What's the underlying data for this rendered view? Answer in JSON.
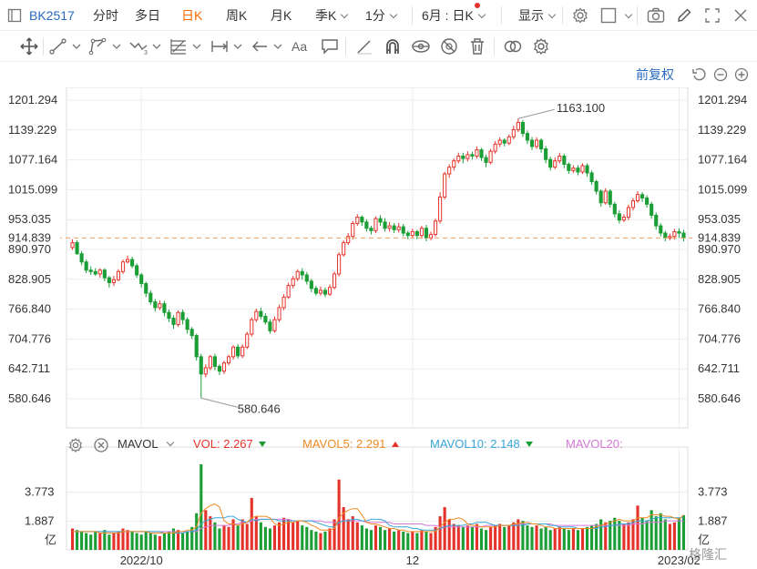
{
  "toolbar": {
    "symbol": "BK2517",
    "tabs": [
      {
        "label": "分时",
        "active": false,
        "dropdown": false
      },
      {
        "label": "多日",
        "active": false,
        "dropdown": false
      },
      {
        "label": "日K",
        "active": true,
        "dropdown": false
      },
      {
        "label": "周K",
        "active": false,
        "dropdown": false
      },
      {
        "label": "月K",
        "active": false,
        "dropdown": false
      },
      {
        "label": "季K",
        "active": false,
        "dropdown": true
      },
      {
        "label": "1分",
        "active": false,
        "dropdown": true
      }
    ],
    "range_label": "6月 : 日K",
    "display_label": "显示"
  },
  "adjust": {
    "label": "前复权"
  },
  "indicator": {
    "name": "MAVOL",
    "vol_label": "VOL: 2.267",
    "ma5_label": "MAVOL5: 2.291",
    "ma10_label": "MAVOL10: 2.148",
    "ma20_label": "MAVOL20:"
  },
  "colors": {
    "up": "#e5332b",
    "down": "#1a9e35",
    "ma5": "#f08a24",
    "ma10": "#38a7d9",
    "ma20": "#d678d9",
    "price_line": "#f0a060",
    "grid": "#ececec"
  },
  "watermark": "格隆汇",
  "chart_data": {
    "type": "candlestick",
    "price_axis": {
      "ticks": [
        "1201.294",
        "1139.229",
        "1077.164",
        "1015.099",
        "953.035",
        "890.970",
        "828.905",
        "766.840",
        "704.776",
        "642.711",
        "580.646"
      ],
      "min": 580.646,
      "max": 1201.294
    },
    "current_price": "914.839",
    "annotations": [
      {
        "label": "1163.100",
        "value": 1163.1
      },
      {
        "label": "580.646",
        "value": 580.646
      }
    ],
    "volume_axis": {
      "ticks": [
        "3.773",
        "1.887"
      ],
      "unit": "亿"
    },
    "x_labels": [
      "2022/10",
      "12",
      "2023/02"
    ],
    "candles": [
      [
        895,
        905,
        890,
        912
      ],
      [
        905,
        882,
        880,
        910
      ],
      [
        882,
        865,
        858,
        888
      ],
      [
        865,
        848,
        842,
        870
      ],
      [
        848,
        845,
        838,
        856
      ],
      [
        845,
        840,
        836,
        852
      ],
      [
        840,
        848,
        832,
        852
      ],
      [
        848,
        832,
        825,
        852
      ],
      [
        832,
        822,
        812,
        836
      ],
      [
        822,
        828,
        815,
        836
      ],
      [
        828,
        845,
        825,
        850
      ],
      [
        845,
        865,
        840,
        870
      ],
      [
        865,
        870,
        862,
        878
      ],
      [
        870,
        857,
        852,
        876
      ],
      [
        857,
        838,
        832,
        862
      ],
      [
        838,
        820,
        812,
        842
      ],
      [
        820,
        800,
        792,
        824
      ],
      [
        800,
        782,
        776,
        806
      ],
      [
        782,
        770,
        762,
        788
      ],
      [
        770,
        778,
        765,
        785
      ],
      [
        778,
        760,
        752,
        784
      ],
      [
        760,
        748,
        740,
        766
      ],
      [
        748,
        735,
        726,
        754
      ],
      [
        735,
        760,
        730,
        764
      ],
      [
        760,
        745,
        735,
        766
      ],
      [
        745,
        725,
        716,
        750
      ],
      [
        725,
        712,
        705,
        730
      ],
      [
        712,
        668,
        660,
        716
      ],
      [
        668,
        632,
        582,
        674
      ],
      [
        632,
        645,
        625,
        652
      ],
      [
        645,
        668,
        640,
        672
      ],
      [
        668,
        648,
        640,
        674
      ],
      [
        648,
        638,
        630,
        652
      ],
      [
        638,
        655,
        632,
        660
      ],
      [
        655,
        668,
        650,
        672
      ],
      [
        668,
        688,
        662,
        692
      ],
      [
        688,
        670,
        664,
        694
      ],
      [
        670,
        688,
        665,
        694
      ],
      [
        688,
        715,
        684,
        720
      ],
      [
        715,
        745,
        710,
        750
      ],
      [
        745,
        762,
        740,
        768
      ],
      [
        762,
        752,
        746,
        770
      ],
      [
        752,
        740,
        735,
        758
      ],
      [
        740,
        722,
        716,
        746
      ],
      [
        722,
        745,
        718,
        752
      ],
      [
        745,
        770,
        740,
        776
      ],
      [
        770,
        792,
        765,
        798
      ],
      [
        792,
        816,
        788,
        822
      ],
      [
        816,
        830,
        810,
        836
      ],
      [
        830,
        845,
        825,
        850
      ],
      [
        845,
        838,
        828,
        852
      ],
      [
        838,
        825,
        818,
        844
      ],
      [
        825,
        810,
        802,
        830
      ],
      [
        810,
        800,
        795,
        815
      ],
      [
        800,
        806,
        795,
        814
      ],
      [
        806,
        798,
        792,
        812
      ],
      [
        798,
        812,
        794,
        818
      ],
      [
        812,
        840,
        808,
        845
      ],
      [
        840,
        880,
        835,
        885
      ],
      [
        880,
        905,
        876,
        910
      ],
      [
        905,
        918,
        900,
        925
      ],
      [
        918,
        945,
        912,
        950
      ],
      [
        945,
        958,
        940,
        964
      ],
      [
        958,
        948,
        940,
        962
      ],
      [
        948,
        935,
        928,
        954
      ],
      [
        935,
        930,
        922,
        940
      ],
      [
        930,
        955,
        925,
        960
      ],
      [
        955,
        948,
        940,
        962
      ],
      [
        948,
        935,
        928,
        956
      ],
      [
        935,
        940,
        928,
        948
      ],
      [
        940,
        932,
        925,
        946
      ],
      [
        932,
        938,
        926,
        946
      ],
      [
        938,
        925,
        918,
        944
      ],
      [
        925,
        920,
        912,
        930
      ],
      [
        920,
        928,
        915,
        934
      ],
      [
        928,
        920,
        912,
        932
      ],
      [
        920,
        935,
        916,
        940
      ],
      [
        935,
        915,
        908,
        942
      ],
      [
        915,
        922,
        910,
        928
      ],
      [
        922,
        950,
        918,
        955
      ],
      [
        950,
        1000,
        945,
        1010
      ],
      [
        1000,
        1048,
        995,
        1052
      ],
      [
        1048,
        1062,
        1040,
        1068
      ],
      [
        1062,
        1075,
        1055,
        1080
      ],
      [
        1075,
        1085,
        1070,
        1092
      ],
      [
        1085,
        1080,
        1070,
        1092
      ],
      [
        1080,
        1088,
        1074,
        1095
      ],
      [
        1088,
        1085,
        1078,
        1094
      ],
      [
        1085,
        1098,
        1080,
        1105
      ],
      [
        1098,
        1082,
        1075,
        1102
      ],
      [
        1082,
        1072,
        1062,
        1088
      ],
      [
        1072,
        1095,
        1068,
        1100
      ],
      [
        1095,
        1110,
        1090,
        1116
      ],
      [
        1110,
        1118,
        1104,
        1124
      ],
      [
        1118,
        1112,
        1105,
        1122
      ],
      [
        1112,
        1125,
        1108,
        1130
      ],
      [
        1125,
        1140,
        1120,
        1148
      ],
      [
        1140,
        1155,
        1135,
        1163
      ],
      [
        1155,
        1132,
        1125,
        1160
      ],
      [
        1132,
        1118,
        1110,
        1138
      ],
      [
        1118,
        1105,
        1098,
        1125
      ],
      [
        1105,
        1118,
        1100,
        1124
      ],
      [
        1118,
        1100,
        1092,
        1122
      ],
      [
        1100,
        1078,
        1070,
        1106
      ],
      [
        1078,
        1062,
        1055,
        1084
      ],
      [
        1062,
        1075,
        1058,
        1082
      ],
      [
        1075,
        1085,
        1070,
        1092
      ],
      [
        1085,
        1068,
        1060,
        1090
      ],
      [
        1068,
        1055,
        1048,
        1072
      ],
      [
        1055,
        1060,
        1050,
        1066
      ],
      [
        1060,
        1052,
        1045,
        1066
      ],
      [
        1052,
        1065,
        1048,
        1070
      ],
      [
        1065,
        1050,
        1042,
        1070
      ],
      [
        1050,
        1032,
        1025,
        1055
      ],
      [
        1032,
        1012,
        1005,
        1036
      ],
      [
        1012,
        988,
        980,
        1016
      ],
      [
        988,
        1012,
        984,
        1018
      ],
      [
        1012,
        985,
        978,
        1016
      ],
      [
        985,
        965,
        958,
        990
      ],
      [
        965,
        952,
        945,
        972
      ],
      [
        952,
        958,
        948,
        964
      ],
      [
        958,
        978,
        952,
        984
      ],
      [
        978,
        992,
        972,
        998
      ],
      [
        992,
        1005,
        988,
        1012
      ],
      [
        1005,
        998,
        990,
        1010
      ],
      [
        998,
        985,
        978,
        1004
      ],
      [
        985,
        962,
        955,
        990
      ],
      [
        962,
        940,
        932,
        968
      ],
      [
        940,
        925,
        918,
        946
      ],
      [
        925,
        915,
        908,
        930
      ],
      [
        915,
        918,
        910,
        924
      ],
      [
        918,
        928,
        912,
        934
      ],
      [
        928,
        925,
        915,
        935
      ],
      [
        925,
        914.8,
        908,
        932
      ]
    ],
    "volumes": [
      1.4,
      1.3,
      1.2,
      1.1,
      1.0,
      1.2,
      1.1,
      1.3,
      1.0,
      1.1,
      1.2,
      1.4,
      1.3,
      1.2,
      1.1,
      1.0,
      1.2,
      1.1,
      1.0,
      0.9,
      1.1,
      1.2,
      1.4,
      1.3,
      1.1,
      1.2,
      1.5,
      2.4,
      5.6,
      2.6,
      2.2,
      1.8,
      1.4,
      1.6,
      1.5,
      2.0,
      1.6,
      2.0,
      1.7,
      3.4,
      2.2,
      1.8,
      1.5,
      1.4,
      1.6,
      1.8,
      2.1,
      2.0,
      1.8,
      1.9,
      1.6,
      1.5,
      1.3,
      1.2,
      1.1,
      1.2,
      1.4,
      2.0,
      4.6,
      2.8,
      2.0,
      2.2,
      1.8,
      1.6,
      1.4,
      1.3,
      1.6,
      1.5,
      1.3,
      1.4,
      1.2,
      1.3,
      1.2,
      1.1,
      1.2,
      1.1,
      1.3,
      1.2,
      1.1,
      1.5,
      2.2,
      2.8,
      2.0,
      1.7,
      1.6,
      1.5,
      1.6,
      1.5,
      1.7,
      1.4,
      1.3,
      1.5,
      1.6,
      1.7,
      1.5,
      1.6,
      1.8,
      2.0,
      1.9,
      1.6,
      1.5,
      1.6,
      1.4,
      1.5,
      1.3,
      1.4,
      1.5,
      1.4,
      1.3,
      1.4,
      1.3,
      1.4,
      1.5,
      1.6,
      1.7,
      2.0,
      1.8,
      1.9,
      2.1,
      1.9,
      1.7,
      1.8,
      2.0,
      2.9,
      2.1,
      1.9,
      2.6,
      2.2,
      2.4,
      2.0,
      1.7,
      1.8,
      2.1,
      2.267
    ],
    "ma5": [
      1.2,
      1.2,
      1.2,
      1.2,
      1.2,
      1.2,
      1.1,
      1.1,
      1.1,
      1.1,
      1.1,
      1.2,
      1.2,
      1.2,
      1.2,
      1.2,
      1.2,
      1.1,
      1.1,
      1.1,
      1.1,
      1.1,
      1.1,
      1.2,
      1.2,
      1.3,
      1.3,
      1.5,
      2.4,
      2.7,
      2.9,
      3.0,
      2.8,
      1.9,
      1.7,
      1.7,
      1.6,
      1.7,
      1.8,
      2.1,
      2.2,
      2.2,
      2.2,
      2.1,
      1.7,
      1.6,
      1.7,
      1.8,
      1.8,
      1.9,
      1.9,
      1.8,
      1.6,
      1.5,
      1.3,
      1.3,
      1.3,
      1.4,
      2.1,
      2.4,
      2.6,
      2.7,
      2.7,
      2.3,
      1.8,
      1.7,
      1.7,
      1.6,
      1.5,
      1.4,
      1.4,
      1.3,
      1.3,
      1.2,
      1.2,
      1.2,
      1.2,
      1.2,
      1.2,
      1.2,
      1.5,
      1.8,
      2.0,
      2.0,
      2.1,
      2.0,
      1.7,
      1.6,
      1.6,
      1.5,
      1.5,
      1.5,
      1.5,
      1.6,
      1.6,
      1.6,
      1.7,
      1.7,
      1.8,
      1.8,
      1.7,
      1.7,
      1.6,
      1.5,
      1.5,
      1.4,
      1.4,
      1.4,
      1.4,
      1.4,
      1.4,
      1.4,
      1.4,
      1.4,
      1.5,
      1.6,
      1.7,
      1.8,
      1.9,
      2.0,
      1.9,
      1.9,
      1.9,
      2.1,
      2.1,
      2.1,
      2.3,
      2.3,
      2.3,
      2.2,
      2.2,
      2.1,
      2.0,
      2.291
    ],
    "ma10": [
      1.2,
      1.2,
      1.2,
      1.2,
      1.2,
      1.2,
      1.2,
      1.2,
      1.2,
      1.2,
      1.2,
      1.2,
      1.2,
      1.2,
      1.2,
      1.2,
      1.2,
      1.2,
      1.2,
      1.2,
      1.1,
      1.1,
      1.1,
      1.1,
      1.1,
      1.2,
      1.2,
      1.3,
      1.7,
      1.9,
      2.0,
      2.1,
      2.1,
      2.1,
      2.2,
      2.2,
      2.0,
      1.9,
      1.8,
      2.0,
      1.9,
      2.0,
      2.0,
      2.0,
      2.0,
      1.9,
      1.9,
      1.9,
      1.9,
      1.9,
      1.9,
      1.9,
      1.9,
      1.8,
      1.7,
      1.6,
      1.5,
      1.5,
      1.8,
      1.9,
      1.9,
      2.0,
      2.0,
      1.9,
      1.9,
      2.0,
      2.0,
      2.0,
      1.9,
      1.6,
      1.5,
      1.5,
      1.5,
      1.5,
      1.4,
      1.4,
      1.3,
      1.3,
      1.3,
      1.3,
      1.4,
      1.5,
      1.6,
      1.6,
      1.6,
      1.6,
      1.7,
      1.7,
      1.8,
      1.8,
      1.8,
      1.7,
      1.6,
      1.6,
      1.6,
      1.6,
      1.6,
      1.6,
      1.6,
      1.7,
      1.7,
      1.7,
      1.7,
      1.7,
      1.6,
      1.6,
      1.5,
      1.5,
      1.5,
      1.5,
      1.4,
      1.4,
      1.4,
      1.4,
      1.4,
      1.5,
      1.5,
      1.6,
      1.6,
      1.7,
      1.7,
      1.7,
      1.8,
      1.9,
      1.9,
      1.9,
      2.0,
      2.1,
      2.1,
      2.1,
      2.1,
      2.1,
      2.1,
      2.148
    ],
    "ma20": [
      1.2,
      1.2,
      1.2,
      1.2,
      1.2,
      1.2,
      1.2,
      1.2,
      1.2,
      1.2,
      1.2,
      1.2,
      1.2,
      1.2,
      1.2,
      1.2,
      1.2,
      1.2,
      1.2,
      1.2,
      1.2,
      1.2,
      1.2,
      1.2,
      1.2,
      1.2,
      1.2,
      1.2,
      1.4,
      1.5,
      1.6,
      1.6,
      1.6,
      1.6,
      1.6,
      1.7,
      1.7,
      1.8,
      1.8,
      1.9,
      2.0,
      2.0,
      2.0,
      2.0,
      2.0,
      2.0,
      2.0,
      2.0,
      1.9,
      1.9,
      1.9,
      1.9,
      1.9,
      1.9,
      1.9,
      1.8,
      1.8,
      1.8,
      1.8,
      1.9,
      1.9,
      1.9,
      1.9,
      1.9,
      1.8,
      1.8,
      1.8,
      1.8,
      1.8,
      1.8,
      1.7,
      1.7,
      1.7,
      1.7,
      1.7,
      1.7,
      1.7,
      1.6,
      1.6,
      1.6,
      1.5,
      1.5,
      1.5,
      1.5,
      1.5,
      1.5,
      1.5,
      1.5,
      1.5,
      1.5,
      1.6,
      1.6,
      1.6,
      1.6,
      1.6,
      1.6,
      1.6,
      1.7,
      1.7,
      1.7,
      1.7,
      1.7,
      1.7,
      1.7,
      1.7,
      1.6,
      1.6,
      1.6,
      1.6,
      1.6,
      1.6,
      1.6,
      1.6,
      1.6,
      1.6,
      1.6,
      1.6,
      1.6,
      1.6,
      1.6,
      1.6,
      1.6,
      1.7,
      1.7,
      1.7,
      1.8,
      1.8,
      1.8,
      1.8,
      1.9,
      1.9,
      1.9,
      1.9,
      1.9
    ]
  }
}
